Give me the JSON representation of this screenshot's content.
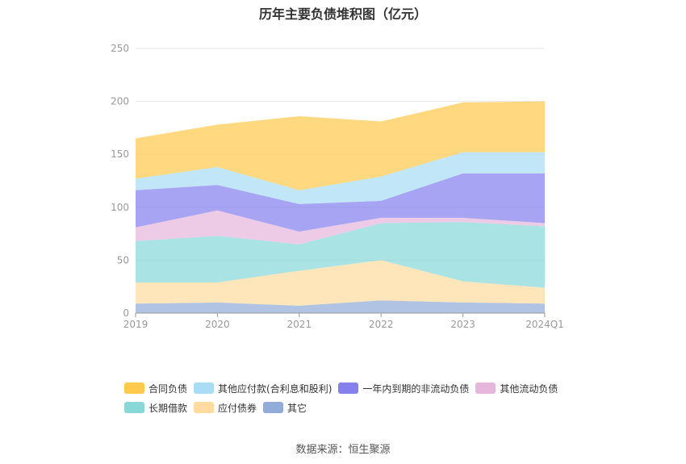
{
  "chart_data": {
    "type": "area",
    "stacked": true,
    "title": "历年主要负债堆积图（亿元）",
    "categories": [
      "2019",
      "2020",
      "2021",
      "2022",
      "2023",
      "2024Q1"
    ],
    "ylim": [
      0,
      250
    ],
    "yticks": [
      0,
      50,
      100,
      150,
      200,
      250
    ],
    "grid": true,
    "legend_position": "bottom",
    "series": [
      {
        "name": "合同负债",
        "color": "#ffc94d",
        "values": [
          38,
          40,
          70,
          52,
          47,
          48
        ]
      },
      {
        "name": "其他应付款(合利息和股利)",
        "color": "#a8ddf5",
        "values": [
          11,
          17,
          13,
          23,
          20,
          20
        ]
      },
      {
        "name": "一年内到期的非流动负债",
        "color": "#8481ee",
        "values": [
          35,
          24,
          26,
          16,
          42,
          47
        ]
      },
      {
        "name": "其他流动负债",
        "color": "#e6b6dc",
        "values": [
          13,
          24,
          12,
          5,
          4,
          3
        ]
      },
      {
        "name": "长期借款",
        "color": "#89d8d8",
        "values": [
          39,
          44,
          25,
          35,
          56,
          58
        ]
      },
      {
        "name": "应付债券",
        "color": "#ffdba0",
        "values": [
          20,
          19,
          33,
          38,
          20,
          15
        ]
      },
      {
        "name": "其它",
        "color": "#91acd8",
        "values": [
          9,
          10,
          7,
          12,
          10,
          9
        ]
      }
    ]
  },
  "source_text": "数据来源：恒生聚源"
}
